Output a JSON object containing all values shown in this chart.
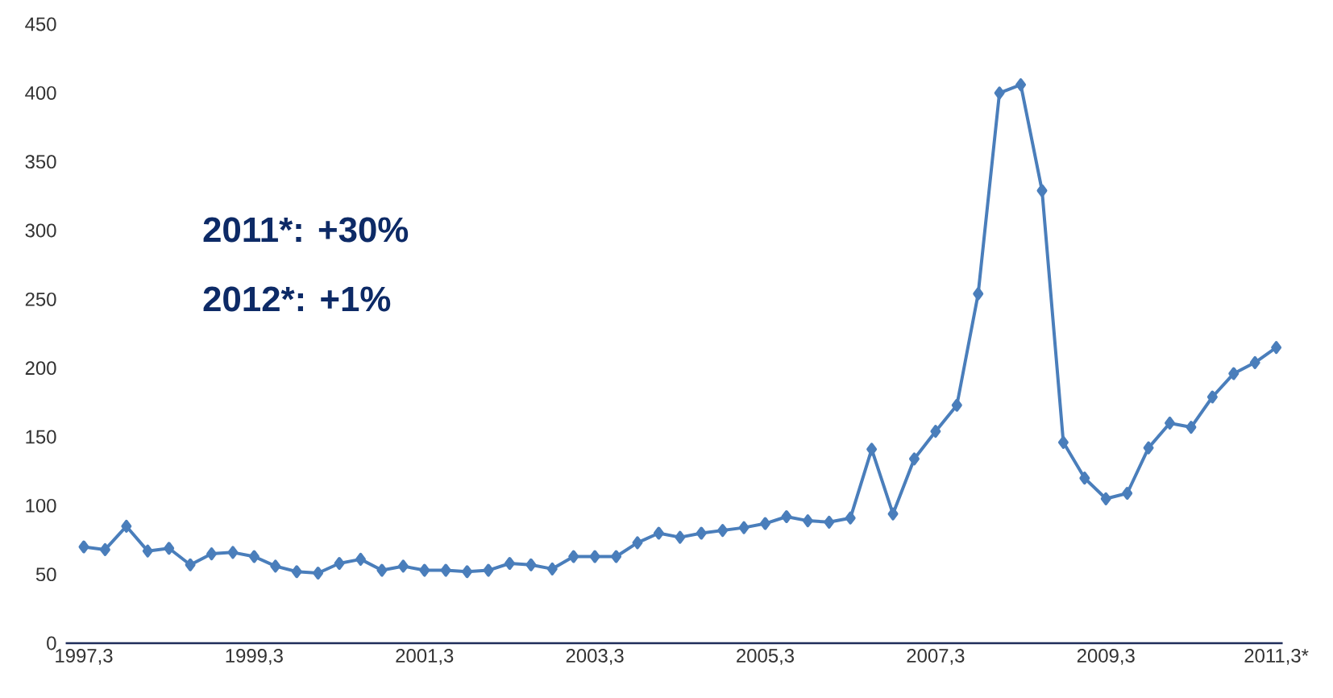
{
  "chart_data": {
    "type": "line",
    "categories": [
      "1997,3",
      null,
      null,
      null,
      null,
      null,
      null,
      null,
      "1999,3",
      null,
      null,
      null,
      null,
      null,
      null,
      null,
      "2001,3",
      null,
      null,
      null,
      null,
      null,
      null,
      null,
      "2003,3",
      null,
      null,
      null,
      null,
      null,
      null,
      null,
      "2005,3",
      null,
      null,
      null,
      null,
      null,
      null,
      null,
      "2007,3",
      null,
      null,
      null,
      null,
      null,
      null,
      null,
      "2009,3",
      null,
      null,
      null,
      null,
      null,
      null,
      null,
      "2011,3*"
    ],
    "values": [
      70,
      68,
      85,
      67,
      69,
      57,
      65,
      66,
      63,
      56,
      52,
      51,
      58,
      61,
      53,
      56,
      53,
      53,
      52,
      53,
      58,
      57,
      54,
      63,
      63,
      63,
      73,
      80,
      77,
      80,
      82,
      84,
      87,
      92,
      89,
      88,
      91,
      141,
      94,
      134,
      154,
      173,
      254,
      400,
      406,
      329,
      146,
      120,
      105,
      109,
      142,
      160,
      157,
      179,
      196,
      204,
      215
    ],
    "color": "#4a7ebb",
    "marker": "diamond",
    "line_style": "solid",
    "ylim": [
      0,
      450
    ],
    "yticks": [
      0,
      50,
      100,
      150,
      200,
      250,
      300,
      350,
      400,
      450
    ],
    "annotations": [
      "2011*: +30%",
      "2012*: +1%"
    ]
  }
}
